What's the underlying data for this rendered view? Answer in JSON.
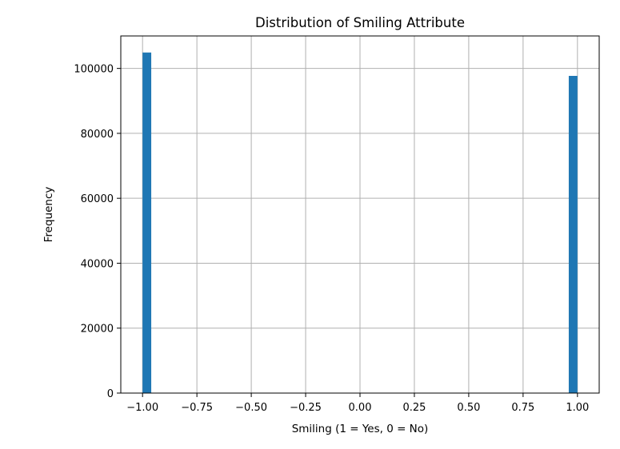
{
  "chart_data": {
    "type": "bar",
    "title": "Distribution of Smiling Attribute",
    "xlabel": "Smiling (1 = Yes, 0 = No)",
    "ylabel": "Frequency",
    "xlim": [
      -1.1,
      1.1
    ],
    "ylim": [
      0,
      110000
    ],
    "x_ticks": [
      -1.0,
      -0.75,
      -0.5,
      -0.25,
      0.0,
      0.25,
      0.5,
      0.75,
      1.0
    ],
    "x_tick_labels": [
      "−1.00",
      "−0.75",
      "−0.50",
      "−0.25",
      "0.00",
      "0.25",
      "0.50",
      "0.75",
      "1.00"
    ],
    "y_ticks": [
      0,
      20000,
      40000,
      60000,
      80000,
      100000
    ],
    "y_tick_labels": [
      "0",
      "20000",
      "40000",
      "60000",
      "80000",
      "100000"
    ],
    "bin_width": 0.04,
    "bars": [
      {
        "x0": -1.0,
        "x1": -0.96,
        "value": 104900
      },
      {
        "x0": 0.96,
        "x1": 1.0,
        "value": 97700
      }
    ],
    "bar_color": "#1f77b4",
    "grid": true
  }
}
